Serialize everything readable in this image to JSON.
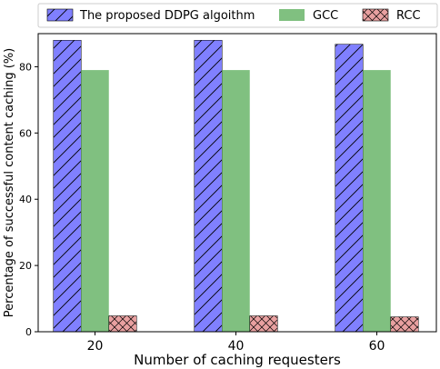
{
  "chart_data": {
    "type": "bar",
    "categories": [
      "20",
      "40",
      "60"
    ],
    "series": [
      {
        "name": "The proposed DDPG algoithm",
        "values": [
          88,
          88,
          86.8
        ],
        "color": "#8080ff",
        "pattern": "diagonal-hatch"
      },
      {
        "name": "GCC",
        "values": [
          79,
          79,
          79
        ],
        "color": "#80c080",
        "pattern": "solid"
      },
      {
        "name": "RCC",
        "values": [
          4.8,
          4.8,
          4.5
        ],
        "color": "#e8a0a0",
        "pattern": "cross-hatch"
      }
    ],
    "xlabel": "Number of caching requesters",
    "ylabel": "Percentage of successful content caching (%)",
    "ylim": [
      0,
      90
    ],
    "yticks": [
      "0",
      "20",
      "40",
      "60",
      "80"
    ],
    "legend_position": "top",
    "grid": false
  }
}
